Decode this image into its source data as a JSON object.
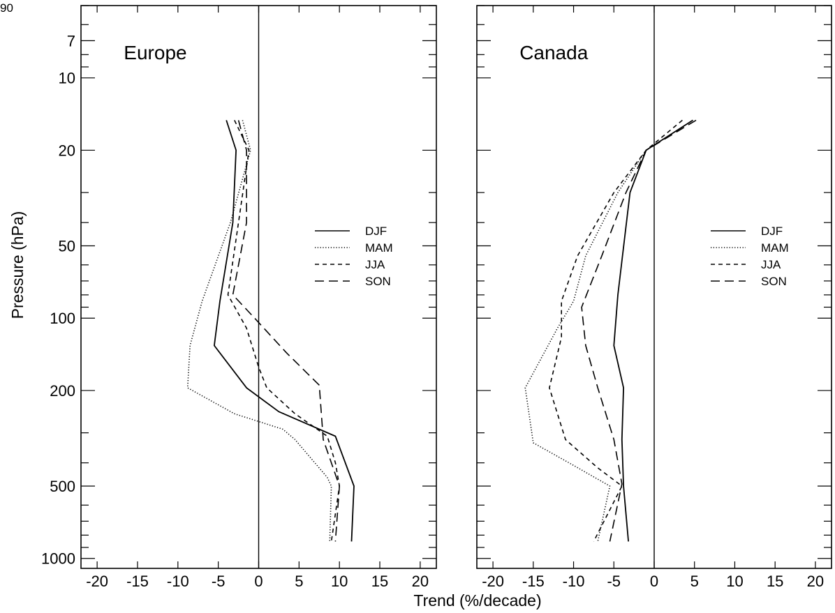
{
  "page_number_fragment": "90",
  "chart_data": {
    "type": "line",
    "xlabel": "Trend (%/decade)",
    "ylabel": "Pressure (hPa)",
    "xlim": [
      -22,
      22
    ],
    "ylim": [
      1100,
      5
    ],
    "yscale": "log",
    "xticks": [
      -20,
      -15,
      -10,
      -5,
      0,
      5,
      10,
      15,
      20
    ],
    "yticks": [
      7,
      10,
      20,
      50,
      100,
      200,
      500,
      1000
    ],
    "ytick_labels": [
      "7",
      "10",
      "20",
      "50",
      "100",
      "200",
      "500",
      "1000"
    ],
    "legend_position": "right",
    "colors": {
      "lines": "#000000",
      "background": "#ffffff"
    },
    "panels": [
      {
        "title": "Europe",
        "series": [
          {
            "name": "DJF",
            "style": "solid",
            "points": [
              [
                -4,
                15
              ],
              [
                -2.8,
                20
              ],
              [
                -3.2,
                40
              ],
              [
                -4.8,
                85
              ],
              [
                -5.5,
                130
              ],
              [
                -1.5,
                195
              ],
              [
                2.5,
                245
              ],
              [
                9.5,
                310
              ],
              [
                11.8,
                500
              ],
              [
                11.5,
                850
              ]
            ]
          },
          {
            "name": "MAM",
            "style": "dotted",
            "points": [
              [
                -2,
                15
              ],
              [
                -1,
                20
              ],
              [
                -3.5,
                40
              ],
              [
                -7,
                85
              ],
              [
                -8.5,
                130
              ],
              [
                -8.8,
                195
              ],
              [
                -3,
                250
              ],
              [
                3,
                290
              ],
              [
                4.5,
                320
              ],
              [
                8.5,
                460
              ],
              [
                9,
                500
              ],
              [
                8.8,
                850
              ]
            ]
          },
          {
            "name": "JJA",
            "style": "dashed",
            "points": [
              [
                -3,
                15
              ],
              [
                -1.2,
                20
              ],
              [
                -2.5,
                40
              ],
              [
                -3.8,
                80
              ],
              [
                -1.5,
                110
              ],
              [
                0,
                160
              ],
              [
                1,
                195
              ],
              [
                4.5,
                250
              ],
              [
                8.5,
                310
              ],
              [
                9.5,
                400
              ],
              [
                10,
                500
              ],
              [
                9,
                850
              ]
            ]
          },
          {
            "name": "SON",
            "style": "long-dash",
            "points": [
              [
                -2.5,
                15
              ],
              [
                -1.5,
                20
              ],
              [
                -1.5,
                40
              ],
              [
                -3.2,
                80
              ],
              [
                -0.5,
                100
              ],
              [
                3.5,
                140
              ],
              [
                7.5,
                190
              ],
              [
                8,
                320
              ],
              [
                10,
                500
              ],
              [
                9.5,
                850
              ]
            ]
          }
        ]
      },
      {
        "title": "Canada",
        "series": [
          {
            "name": "DJF",
            "style": "solid",
            "points": [
              [
                4.8,
                15
              ],
              [
                -1,
                20
              ],
              [
                -3,
                30
              ],
              [
                -4.5,
                80
              ],
              [
                -5,
                130
              ],
              [
                -3.8,
                195
              ],
              [
                -4,
                320
              ],
              [
                -3.8,
                500
              ],
              [
                -3.2,
                850
              ]
            ]
          },
          {
            "name": "MAM",
            "style": "dotted",
            "points": [
              [
                4.8,
                15
              ],
              [
                -1,
                20
              ],
              [
                -4.5,
                30
              ],
              [
                -8.5,
                55
              ],
              [
                -10,
                85
              ],
              [
                -12,
                110
              ],
              [
                -16,
                195
              ],
              [
                -15,
                330
              ],
              [
                -10,
                410
              ],
              [
                -5.5,
                500
              ],
              [
                -7,
                850
              ]
            ]
          },
          {
            "name": "JJA",
            "style": "dashed",
            "points": [
              [
                3.5,
                15
              ],
              [
                -1,
                20
              ],
              [
                -5,
                30
              ],
              [
                -9.5,
                55
              ],
              [
                -11.5,
                85
              ],
              [
                -11.5,
                120
              ],
              [
                -13,
                195
              ],
              [
                -11,
                320
              ],
              [
                -7,
                420
              ],
              [
                -4,
                500
              ],
              [
                -7.5,
                850
              ]
            ]
          },
          {
            "name": "SON",
            "style": "long-dash",
            "points": [
              [
                5.2,
                15
              ],
              [
                -1,
                20
              ],
              [
                -3.5,
                30
              ],
              [
                -6.5,
                55
              ],
              [
                -9,
                90
              ],
              [
                -8.5,
                130
              ],
              [
                -7,
                195
              ],
              [
                -5,
                320
              ],
              [
                -4,
                490
              ],
              [
                -5.5,
                850
              ]
            ]
          }
        ]
      }
    ]
  }
}
